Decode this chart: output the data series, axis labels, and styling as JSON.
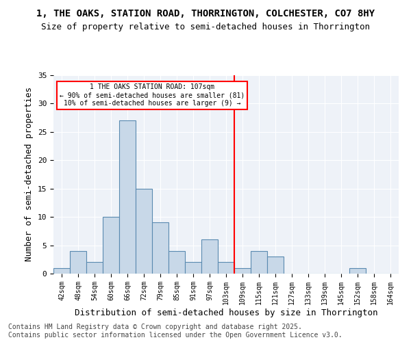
{
  "title1": "1, THE OAKS, STATION ROAD, THORRINGTON, COLCHESTER, CO7 8HY",
  "title2": "Size of property relative to semi-detached houses in Thorrington",
  "xlabel": "Distribution of semi-detached houses by size in Thorrington",
  "ylabel": "Number of semi-detached properties",
  "bin_labels": [
    "42sqm",
    "48sqm",
    "54sqm",
    "60sqm",
    "66sqm",
    "72sqm",
    "79sqm",
    "85sqm",
    "91sqm",
    "97sqm",
    "103sqm",
    "109sqm",
    "115sqm",
    "121sqm",
    "127sqm",
    "133sqm",
    "139sqm",
    "145sqm",
    "152sqm",
    "158sqm",
    "164sqm"
  ],
  "bar_heights": [
    1,
    4,
    2,
    10,
    27,
    15,
    9,
    4,
    2,
    6,
    2,
    1,
    4,
    3,
    0,
    0,
    0,
    0,
    1,
    0,
    0
  ],
  "bar_color": "#c8d8e8",
  "bar_edge_color": "#5a8ab0",
  "vline_color": "red",
  "annotation_text": "1 THE OAKS STATION ROAD: 107sqm\n← 90% of semi-detached houses are smaller (81)\n10% of semi-detached houses are larger (9) →",
  "ylim": [
    0,
    35
  ],
  "yticks": [
    0,
    5,
    10,
    15,
    20,
    25,
    30,
    35
  ],
  "background_color": "#eef2f8",
  "footer": "Contains HM Land Registry data © Crown copyright and database right 2025.\nContains public sector information licensed under the Open Government Licence v3.0.",
  "title1_fontsize": 10,
  "title2_fontsize": 9,
  "xlabel_fontsize": 9,
  "ylabel_fontsize": 9,
  "footer_fontsize": 7
}
